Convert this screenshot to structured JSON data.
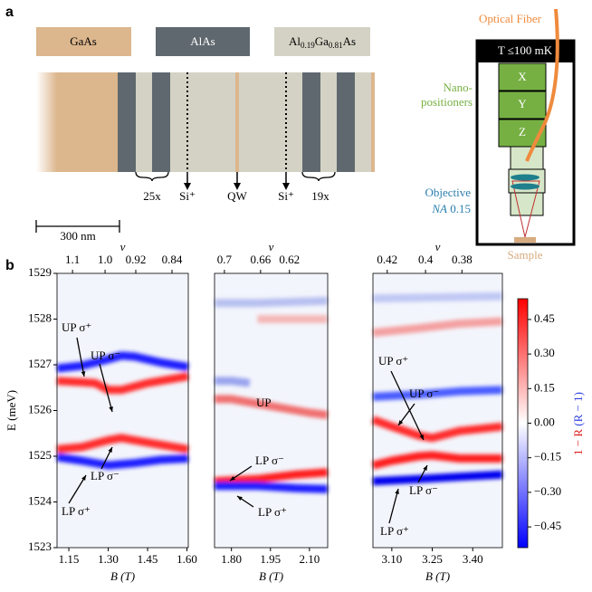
{
  "panel_a": {
    "label": "a",
    "legend": {
      "gaas": "GaAs",
      "alas": "AlAs",
      "algaas": [
        "Al",
        "0.19",
        "Ga",
        "0.81",
        "As"
      ]
    },
    "markers": [
      "25x",
      "Si⁺",
      "QW",
      "Si⁺",
      "19x"
    ],
    "scale_bar": "300 nm",
    "setup": {
      "fiber": "Optical Fiber",
      "temperature": "T ≤100 mK",
      "stages": [
        "X",
        "Y",
        "Z"
      ],
      "positioners": [
        "Nano-",
        "positioners"
      ],
      "objective": "Objective",
      "na": [
        "NA",
        "0.15"
      ],
      "sample": "Sample"
    }
  },
  "panel_b_label": "b",
  "colorbar": {
    "clim": [
      -0.54,
      0.54
    ],
    "cticks": [
      0.45,
      {
        "value": 0.3,
        "label": "0.30"
      },
      0.15,
      {
        "value": 0,
        "label": "0.00"
      },
      {
        "value": -0.15,
        "label": "−0.15"
      },
      {
        "value": -0.3,
        "label": "−0.30"
      },
      {
        "value": -0.45,
        "label": "−0.45"
      }
    ],
    "label_red": "1 − R",
    "label_blue": "(R − 1)"
  },
  "chart_data": [
    {
      "type": "heatmap",
      "xlabel": "B (T)",
      "ylabel": "E (meV)",
      "x2label": "ν",
      "xlim": [
        1.105,
        1.605
      ],
      "ylim": [
        1523,
        1529
      ],
      "xticks": [
        1.15,
        {
          "value": 1.3,
          "label": "1.30"
        },
        1.45,
        {
          "value": 1.6,
          "label": "1.60"
        }
      ],
      "yticks": [
        1523,
        1524,
        1525,
        1526,
        1527,
        1528,
        1529
      ],
      "x2ticks": [
        {
          "value": 1.164,
          "label": "1.1"
        },
        {
          "value": 1.288,
          "label": "1.0"
        },
        {
          "value": 1.405,
          "label": "0.92"
        },
        {
          "value": 1.543,
          "label": "0.84"
        }
      ],
      "series": [
        {
          "color": "#1a1aff",
          "x": [
            1.105,
            1.2,
            1.3,
            1.35,
            1.4,
            1.5,
            1.605
          ],
          "values": [
            1526.92,
            1526.98,
            1527.12,
            1527.2,
            1527.18,
            1527.05,
            1526.95
          ]
        },
        {
          "color": "#ff2a2a",
          "x": [
            1.105,
            1.2,
            1.25,
            1.3,
            1.35,
            1.45,
            1.605
          ],
          "values": [
            1526.65,
            1526.62,
            1526.6,
            1526.45,
            1526.45,
            1526.6,
            1526.75
          ]
        },
        {
          "color": "#ff2a2a",
          "x": [
            1.105,
            1.2,
            1.3,
            1.35,
            1.45,
            1.605
          ],
          "values": [
            1525.15,
            1525.2,
            1525.35,
            1525.4,
            1525.3,
            1525.15
          ]
        },
        {
          "color": "#1a1aff",
          "x": [
            1.105,
            1.2,
            1.3,
            1.4,
            1.5,
            1.605
          ],
          "values": [
            1524.98,
            1524.9,
            1524.8,
            1524.85,
            1524.92,
            1524.95
          ]
        }
      ],
      "annotations": [
        "UP σ⁺",
        "UP σ⁻",
        "LP σ⁻",
        "LP σ⁺"
      ]
    },
    {
      "type": "heatmap",
      "xlabel": "B (T)",
      "x2label": "ν",
      "xlim": [
        1.735,
        2.17
      ],
      "ylim": [
        1523,
        1529
      ],
      "xticks": [
        {
          "value": 1.8,
          "label": "1.80"
        },
        1.95,
        {
          "value": 2.1,
          "label": "2.10"
        }
      ],
      "x2ticks": [
        {
          "value": 1.773,
          "label": "0.7"
        },
        {
          "value": 1.912,
          "label": "0.66"
        },
        {
          "value": 2.023,
          "label": "0.62"
        }
      ],
      "series": [
        {
          "color": "#b8c0f0",
          "x": [
            1.735,
            1.9,
            2.17
          ],
          "values": [
            1528.35,
            1528.35,
            1528.4
          ]
        },
        {
          "color": "#f4b8b8",
          "x": [
            1.9,
            2.0,
            2.17
          ],
          "values": [
            1528.0,
            1528.0,
            1528.0
          ]
        },
        {
          "color": "#9aa4ee",
          "x": [
            1.735,
            1.8,
            1.87
          ],
          "values": [
            1526.65,
            1526.65,
            1526.6
          ]
        },
        {
          "color": "#f07070",
          "x": [
            1.735,
            1.8,
            1.9,
            2.0,
            2.1,
            2.17
          ],
          "values": [
            1526.25,
            1526.25,
            1526.15,
            1526.05,
            1525.95,
            1525.9
          ]
        },
        {
          "color": "#ff1a1a",
          "x": [
            1.735,
            1.9,
            2.05,
            2.17
          ],
          "values": [
            1524.45,
            1524.5,
            1524.6,
            1524.65
          ]
        },
        {
          "color": "#1a1aff",
          "x": [
            1.735,
            1.9,
            2.05,
            2.17
          ],
          "values": [
            1524.35,
            1524.35,
            1524.3,
            1524.28
          ]
        }
      ],
      "annotations": [
        "UP",
        "LP σ⁻",
        "LP σ⁺"
      ]
    },
    {
      "type": "heatmap",
      "xlabel": "B (T)",
      "x2label": "ν",
      "xlim": [
        3.03,
        3.51
      ],
      "ylim": [
        1523,
        1529
      ],
      "xticks": [
        {
          "value": 3.1,
          "label": "3.10"
        },
        3.25,
        {
          "value": 3.4,
          "label": "3.40"
        }
      ],
      "x2ticks": [
        {
          "value": 3.083,
          "label": "0.42"
        },
        {
          "value": 3.225,
          "label": "0.4"
        },
        {
          "value": 3.36,
          "label": "0.38"
        }
      ],
      "series": [
        {
          "color": "#c0c8f4",
          "x": [
            3.03,
            3.51
          ],
          "values": [
            1528.45,
            1528.5
          ]
        },
        {
          "color": "#f4a0a0",
          "x": [
            3.03,
            3.2,
            3.35,
            3.51
          ],
          "values": [
            1527.7,
            1527.8,
            1527.9,
            1527.95
          ]
        },
        {
          "color": "#4a5cff",
          "x": [
            3.03,
            3.2,
            3.35,
            3.51
          ],
          "values": [
            1526.3,
            1526.35,
            1526.42,
            1526.45
          ]
        },
        {
          "color": "#ff2a2a",
          "x": [
            3.03,
            3.1,
            3.2,
            3.25,
            3.35,
            3.51
          ],
          "values": [
            1525.8,
            1525.65,
            1525.45,
            1525.4,
            1525.55,
            1525.65
          ]
        },
        {
          "color": "#ff1a1a",
          "x": [
            3.03,
            3.1,
            3.2,
            3.25,
            3.35,
            3.51
          ],
          "values": [
            1524.8,
            1524.9,
            1525.0,
            1525.02,
            1524.95,
            1524.95
          ]
        },
        {
          "color": "#0000ee",
          "x": [
            3.03,
            3.2,
            3.35,
            3.51
          ],
          "values": [
            1524.45,
            1524.5,
            1524.55,
            1524.6
          ]
        }
      ],
      "annotations": [
        "UP σ⁺",
        "UP σ⁻",
        "LP σ⁻",
        "LP σ⁺"
      ]
    }
  ]
}
